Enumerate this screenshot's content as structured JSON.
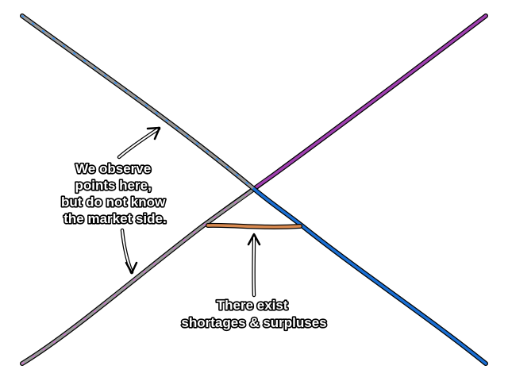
{
  "annotations": {
    "observe": [
      "We observe",
      "points here,",
      "but do not know",
      "the market side."
    ],
    "gap": [
      "There exist",
      "shortages & surpluses"
    ]
  },
  "colors": {
    "demand": "#1a6fd4",
    "supply": "#a040b0",
    "observed": "#9a9a9a",
    "gap": "#d98a50",
    "outline": "#000000"
  }
}
